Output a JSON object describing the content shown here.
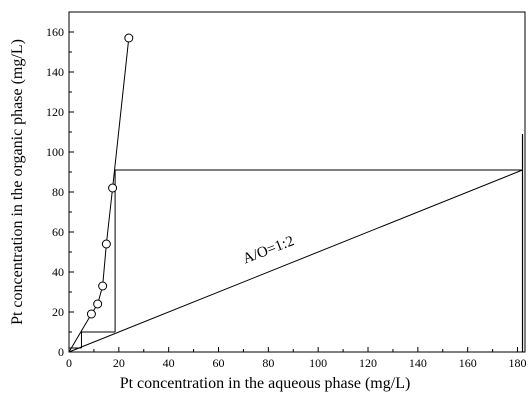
{
  "chart_data": {
    "type": "scatter",
    "xlabel": "Pt concentration in the aqueous phase (mg/L)",
    "ylabel": "Pt concentration in the organic phase (mg/L)",
    "xlim": [
      0,
      183
    ],
    "ylim": [
      0,
      170
    ],
    "xticks": [
      0,
      20,
      40,
      60,
      80,
      100,
      120,
      140,
      160,
      180
    ],
    "yticks": [
      0,
      20,
      40,
      60,
      80,
      100,
      120,
      140,
      160
    ],
    "series": [
      {
        "marker": "open-circle",
        "style": "line+markers",
        "x": [
          0,
          9,
          11.5,
          13.5,
          15,
          17.5,
          24
        ],
        "y": [
          0,
          19,
          24,
          33,
          54,
          82,
          157
        ]
      }
    ],
    "operating_line": {
      "x": [
        0,
        182
      ],
      "y": [
        0,
        91
      ],
      "label": "A/O=1:2"
    },
    "mccabe_thiele_steps": [
      {
        "x": [
          182,
          18.5
        ],
        "y": [
          91,
          91
        ]
      },
      {
        "x": [
          18.5,
          18.5
        ],
        "y": [
          91,
          10
        ]
      },
      {
        "x": [
          18.5,
          5
        ],
        "y": [
          10,
          10
        ]
      },
      {
        "x": [
          5,
          5
        ],
        "y": [
          10,
          2
        ]
      },
      {
        "x": [
          5,
          0
        ],
        "y": [
          2,
          2
        ]
      }
    ],
    "vertical_marker": {
      "x": 182,
      "y": [
        0,
        109
      ]
    },
    "grid": false,
    "colors": {
      "line": "#000000",
      "marker_fill": "#ffffff"
    }
  }
}
